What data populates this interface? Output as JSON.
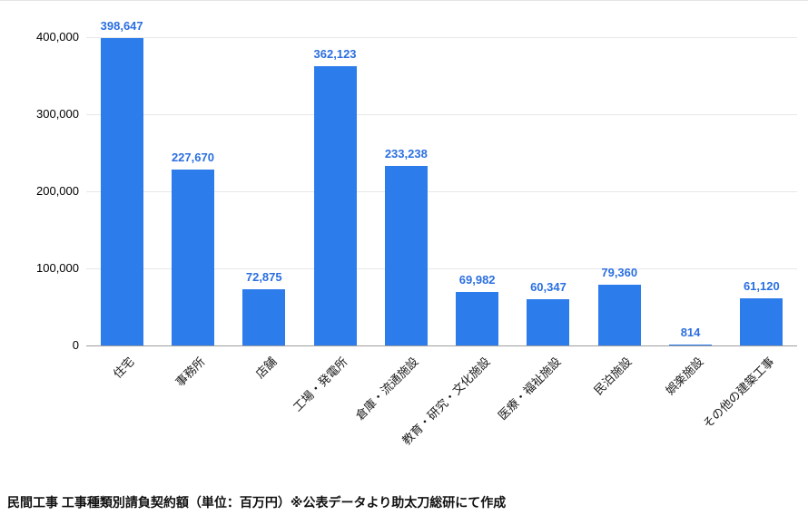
{
  "chart_data": {
    "type": "bar",
    "title": "",
    "categories": [
      "住宅",
      "事務所",
      "店舗",
      "工場・発電所",
      "倉庫・流通施設",
      "教育・研究・文化施設",
      "医療・福祉施設",
      "民泊施設",
      "娯楽施設",
      "その他の建築工事"
    ],
    "values": [
      398647,
      227670,
      72875,
      362123,
      233238,
      69982,
      60347,
      79360,
      814,
      61120
    ],
    "value_labels": [
      "398,647",
      "227,670",
      "72,875",
      "362,123",
      "233,238",
      "69,982",
      "60,347",
      "79,360",
      "814",
      "61,120"
    ],
    "xlabel": "",
    "ylabel": "",
    "ylim": [
      0,
      400000
    ],
    "yticks": [
      0,
      100000,
      200000,
      300000,
      400000
    ],
    "ytick_labels": [
      "0",
      "100,000",
      "200,000",
      "300,000",
      "400,000"
    ],
    "grid": true,
    "legend_position": "none",
    "bar_color": "#2d7ceb",
    "value_label_color": "#2a6fe0",
    "gridline_color": "#e6e6e6",
    "axis_line_color": "#9e9e9e"
  },
  "caption": "民間工事 工事種類別請負契約額（単位：百万円）※公表データより助太刀総研にて作成"
}
